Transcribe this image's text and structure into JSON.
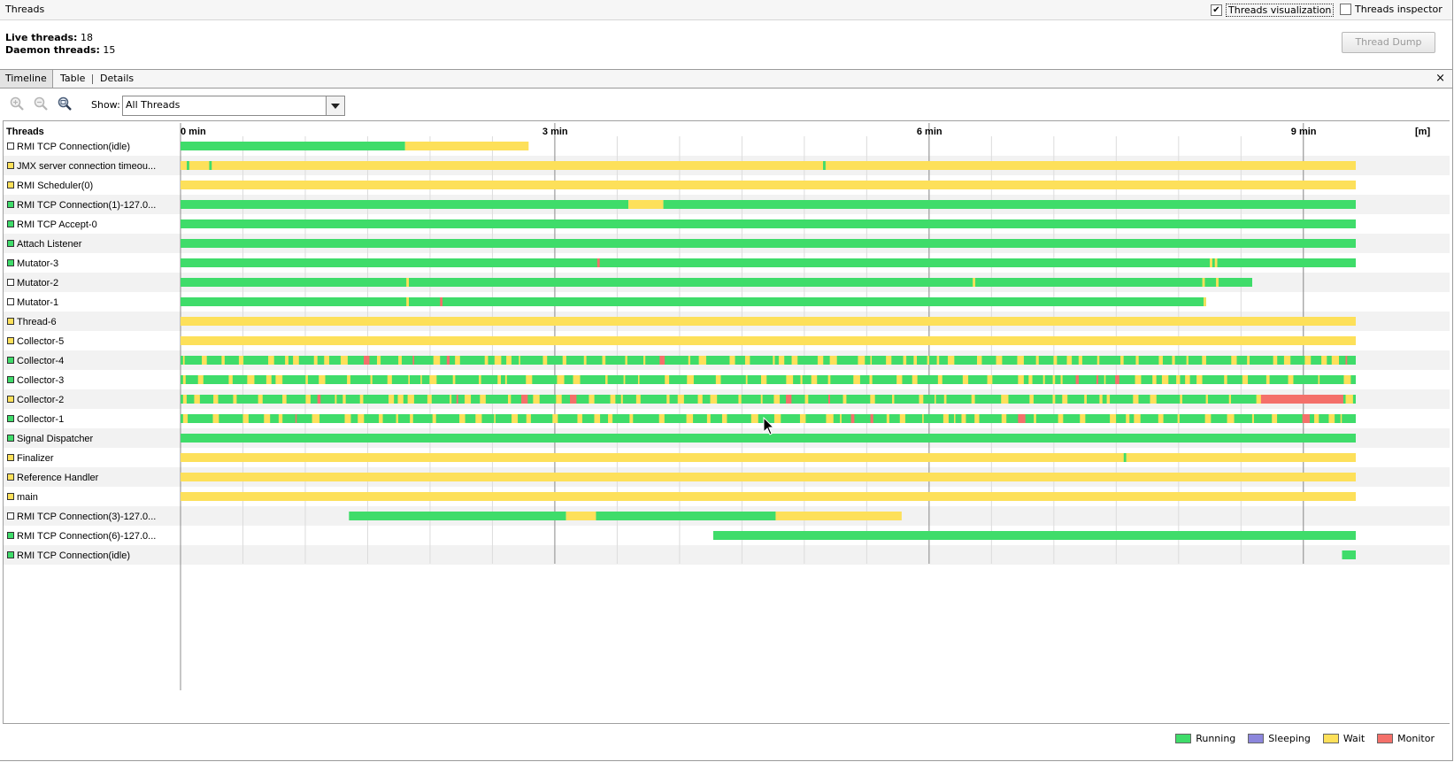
{
  "window": {
    "title": "Threads"
  },
  "header": {
    "threads_visualization": {
      "label": "Threads visualization",
      "checked": true,
      "mark": "✔"
    },
    "threads_inspector": {
      "label": "Threads inspector",
      "checked": false
    }
  },
  "summary": {
    "live_label": "Live threads:",
    "live_value": "18",
    "daemon_label": "Daemon threads:",
    "daemon_value": "15"
  },
  "thread_dump_label": "Thread Dump",
  "tabs": [
    {
      "label": "Timeline",
      "active": true
    },
    {
      "label": "Table",
      "active": false
    },
    {
      "label": "Details",
      "active": false
    }
  ],
  "close_icon": "×",
  "toolbar": {
    "zoom_icons": [
      "zoom-in-icon",
      "zoom-out-icon",
      "zoom-fit-icon"
    ],
    "show_label": "Show:",
    "show_value": "All Threads"
  },
  "timeline": {
    "header": "Threads",
    "unit": "[m]",
    "max_minutes": 9.42,
    "ticks": [
      {
        "m": 0,
        "label": "0 min"
      },
      {
        "m": 3,
        "label": "3 min"
      },
      {
        "m": 6,
        "label": "6 min"
      },
      {
        "m": 9,
        "label": "9 min"
      }
    ],
    "minor_step_minutes": 0.5,
    "colors": {
      "running": "#3fdc6a",
      "sleeping": "#8c86dc",
      "wait": "#fde05a",
      "monitor": "#f4706a"
    },
    "threads": [
      {
        "name": "RMI TCP Connection(idle)",
        "icon": "white",
        "segments": [
          [
            "running",
            0,
            1.8
          ],
          [
            "wait",
            1.8,
            2.79
          ]
        ]
      },
      {
        "name": "JMX server connection timeou...",
        "icon": "wait",
        "segments": [
          [
            "wait",
            0,
            9.42
          ],
          [
            "running",
            0.05,
            0.07
          ],
          [
            "running",
            0.23,
            0.25
          ],
          [
            "running",
            5.15,
            5.17
          ]
        ]
      },
      {
        "name": "RMI Scheduler(0)",
        "icon": "wait",
        "segments": [
          [
            "wait",
            0,
            9.42
          ]
        ]
      },
      {
        "name": "RMI TCP Connection(1)-127.0...",
        "icon": "running",
        "segments": [
          [
            "running",
            0,
            3.59
          ],
          [
            "wait",
            3.59,
            3.87
          ],
          [
            "running",
            3.87,
            9.42
          ]
        ]
      },
      {
        "name": "RMI TCP Accept-0",
        "icon": "running",
        "segments": [
          [
            "running",
            0,
            9.42
          ]
        ]
      },
      {
        "name": "Attach Listener",
        "icon": "running",
        "segments": [
          [
            "running",
            0,
            9.42
          ]
        ]
      },
      {
        "name": "Mutator-3",
        "icon": "running",
        "segments": [
          [
            "running",
            0,
            9.42
          ],
          [
            "monitor",
            3.34,
            3.36
          ],
          [
            "wait",
            8.25,
            8.27
          ],
          [
            "wait",
            8.29,
            8.31
          ]
        ]
      },
      {
        "name": "Mutator-2",
        "icon": "white",
        "segments": [
          [
            "running",
            0,
            8.59
          ],
          [
            "wait",
            1.81,
            1.83
          ],
          [
            "wait",
            6.35,
            6.37
          ],
          [
            "wait",
            8.19,
            8.21
          ],
          [
            "wait",
            8.3,
            8.32
          ]
        ]
      },
      {
        "name": "Mutator-1",
        "icon": "white",
        "segments": [
          [
            "running",
            0,
            8.22
          ],
          [
            "wait",
            1.81,
            1.83
          ],
          [
            "monitor",
            2.08,
            2.1
          ],
          [
            "wait",
            8.2,
            8.22
          ]
        ]
      },
      {
        "name": "Thread-6",
        "icon": "wait",
        "segments": [
          [
            "wait",
            0,
            9.42
          ]
        ]
      },
      {
        "name": "Collector-5",
        "icon": "wait",
        "segments": [
          [
            "wait",
            0,
            9.42
          ]
        ]
      },
      {
        "name": "Collector-4",
        "icon": "running",
        "pattern": "dense",
        "seed": 4,
        "segments": [
          [
            "running",
            0,
            9.42
          ]
        ]
      },
      {
        "name": "Collector-3",
        "icon": "running",
        "pattern": "dense",
        "seed": 3,
        "segments": [
          [
            "running",
            0,
            9.42
          ]
        ]
      },
      {
        "name": "Collector-2",
        "icon": "wait",
        "pattern": "dense",
        "seed": 2,
        "segments": [
          [
            "running",
            0,
            9.42
          ],
          [
            "monitor",
            8.64,
            9.32
          ]
        ]
      },
      {
        "name": "Collector-1",
        "icon": "running",
        "pattern": "dense",
        "seed": 1,
        "segments": [
          [
            "running",
            0,
            9.42
          ]
        ]
      },
      {
        "name": "Signal Dispatcher",
        "icon": "running",
        "segments": [
          [
            "running",
            0,
            9.42
          ]
        ]
      },
      {
        "name": "Finalizer",
        "icon": "wait",
        "segments": [
          [
            "wait",
            0,
            9.42
          ],
          [
            "running",
            7.56,
            7.58
          ]
        ]
      },
      {
        "name": "Reference Handler",
        "icon": "wait",
        "segments": [
          [
            "wait",
            0,
            9.42
          ]
        ]
      },
      {
        "name": "main",
        "icon": "wait",
        "segments": [
          [
            "wait",
            0,
            9.42
          ]
        ]
      },
      {
        "name": "RMI TCP Connection(3)-127.0...",
        "icon": "white",
        "segments": [
          [
            "running",
            1.35,
            3.09
          ],
          [
            "wait",
            3.09,
            3.33
          ],
          [
            "running",
            3.33,
            4.77
          ],
          [
            "wait",
            4.77,
            5.78
          ]
        ]
      },
      {
        "name": "RMI TCP Connection(6)-127.0...",
        "icon": "running",
        "segments": [
          [
            "running",
            4.27,
            9.42
          ]
        ]
      },
      {
        "name": "RMI TCP Connection(idle)",
        "icon": "running",
        "segments": [
          [
            "running",
            9.31,
            9.42
          ]
        ]
      }
    ]
  },
  "legend": [
    {
      "label": "Running",
      "key": "running"
    },
    {
      "label": "Sleeping",
      "key": "sleeping"
    },
    {
      "label": "Wait",
      "key": "wait"
    },
    {
      "label": "Monitor",
      "key": "monitor"
    }
  ]
}
